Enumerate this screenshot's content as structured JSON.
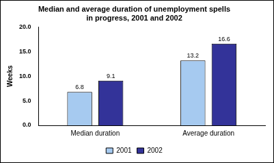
{
  "chart_data": {
    "type": "bar",
    "title": [
      "Median and average duration of unemployment spells",
      "in progress, 2001 and 2002"
    ],
    "y_label": "Weeks",
    "categories": [
      "Median duration",
      "Average duration"
    ],
    "series": [
      {
        "name": "2001",
        "color": "#a6caf0",
        "values": [
          6.8,
          13.2
        ]
      },
      {
        "name": "2002",
        "color": "#333399",
        "values": [
          9.1,
          16.6
        ]
      }
    ],
    "ylim": [
      0,
      20
    ],
    "yticks": [
      {
        "value": 0,
        "label": "0.0"
      },
      {
        "value": 5,
        "label": "5.0"
      },
      {
        "value": 10,
        "label": "10.0"
      },
      {
        "value": 15,
        "label": "15.0"
      },
      {
        "value": 20,
        "label": "20.0"
      }
    ],
    "grid": false,
    "legend": "bottom",
    "data_labels": true
  }
}
